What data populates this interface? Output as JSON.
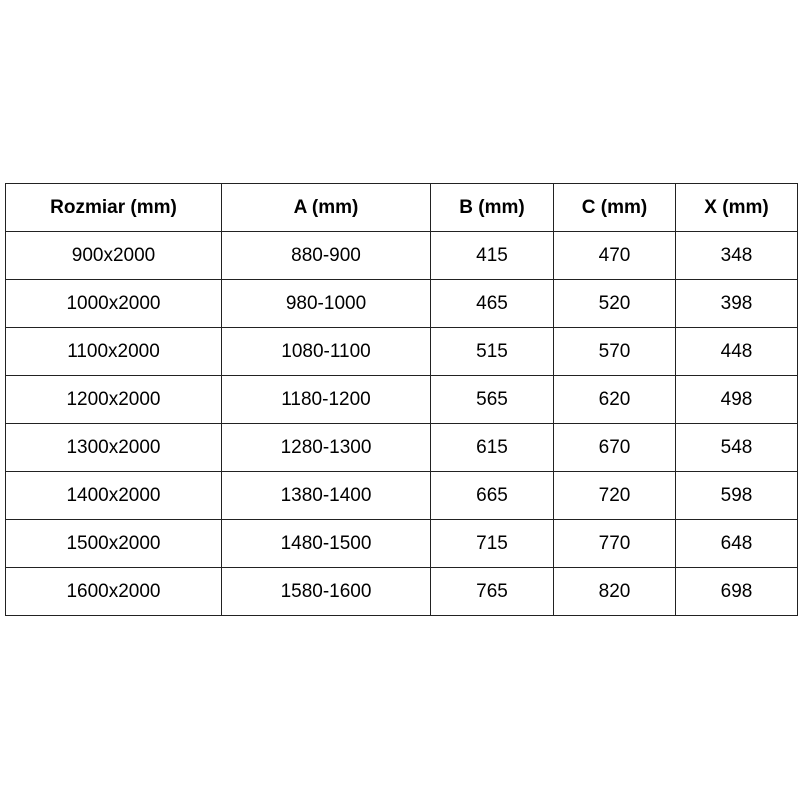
{
  "table": {
    "headers": [
      "Rozmiar (mm)",
      "A (mm)",
      "B (mm)",
      "C (mm)",
      "X (mm)"
    ],
    "rows": [
      [
        "900x2000",
        "880-900",
        "415",
        "470",
        "348"
      ],
      [
        "1000x2000",
        "980-1000",
        "465",
        "520",
        "398"
      ],
      [
        "1100x2000",
        "1080-1100",
        "515",
        "570",
        "448"
      ],
      [
        "1200x2000",
        "1180-1200",
        "565",
        "620",
        "498"
      ],
      [
        "1300x2000",
        "1280-1300",
        "615",
        "670",
        "548"
      ],
      [
        "1400x2000",
        "1380-1400",
        "665",
        "720",
        "598"
      ],
      [
        "1500x2000",
        "1480-1500",
        "715",
        "770",
        "648"
      ],
      [
        "1600x2000",
        "1580-1600",
        "765",
        "820",
        "698"
      ]
    ]
  }
}
